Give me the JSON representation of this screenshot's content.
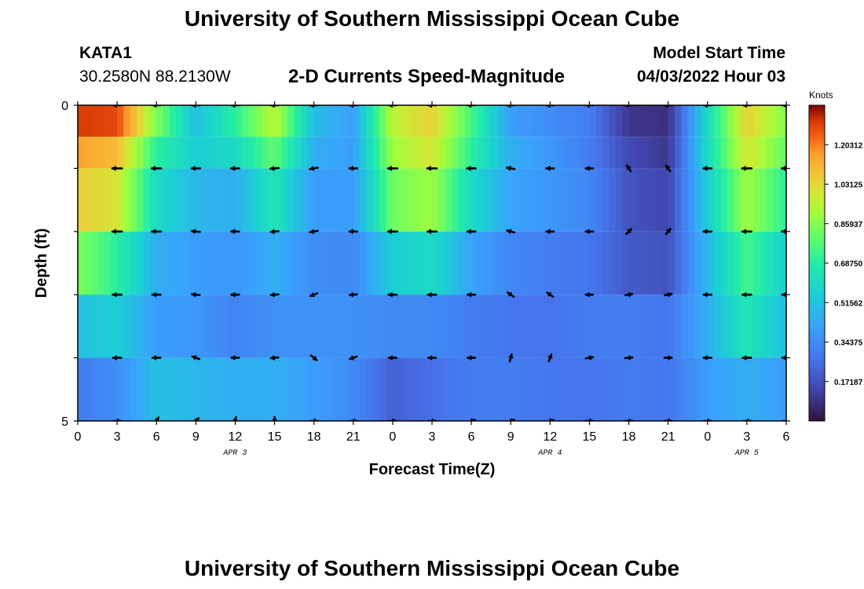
{
  "header": {
    "title": "University of Southern Mississippi Ocean Cube",
    "station_id": "KATA1",
    "coordinates": "30.2580N  88.2130W",
    "chart_title": "2-D Currents Speed-Magnitude",
    "model_label": "Model Start Time",
    "model_time": "04/03/2022 Hour 03"
  },
  "footer": {
    "title": "University of Southern Mississippi Ocean Cube"
  },
  "chart_data": {
    "type": "heatmap",
    "title": "2-D Currents Speed-Magnitude",
    "xlabel": "Forecast Time(Z)",
    "ylabel": "Depth (ft)",
    "x_ticks": [
      "0",
      "3",
      "6",
      "9",
      "12",
      "15",
      "18",
      "21",
      "0",
      "3",
      "6",
      "9",
      "12",
      "15",
      "18",
      "21",
      "0",
      "3",
      "6"
    ],
    "x_range_hours": [
      0,
      54
    ],
    "y_ticks": [
      "0",
      "5"
    ],
    "y_range_ft": [
      0,
      5
    ],
    "date_labels": [
      {
        "hour": 12,
        "text": "APR 3"
      },
      {
        "hour": 36,
        "text": "APR 4"
      },
      {
        "hour": 51,
        "text": "APR 5"
      }
    ],
    "colorbar": {
      "label": "Knots",
      "min": 0,
      "max": 1.375,
      "ticks": [
        "1.20312",
        "1.03125",
        "0.85937",
        "0.68750",
        "0.51562",
        "0.34375",
        "0.17187"
      ],
      "tick_values": [
        1.20312,
        1.03125,
        0.85937,
        0.6875,
        0.51562,
        0.34375,
        0.17187
      ]
    },
    "depth_layers_ft": [
      0,
      0.5,
      1.5,
      2.5,
      3.5,
      4.5
    ],
    "key_times_hours": [
      0,
      3,
      6,
      9,
      12,
      15,
      18,
      21,
      24,
      27,
      30,
      33,
      36,
      39,
      42,
      45,
      48,
      51,
      54
    ],
    "speed_knots": [
      [
        1.3,
        1.28,
        0.85,
        0.5,
        0.7,
        0.95,
        0.5,
        0.4,
        0.95,
        1.05,
        0.75,
        0.4,
        0.35,
        0.3,
        0.1,
        0.08,
        0.6,
        1.05,
        0.85
      ],
      [
        1.15,
        1.1,
        0.7,
        0.55,
        0.6,
        0.8,
        0.45,
        0.4,
        0.9,
        1.0,
        0.7,
        0.45,
        0.38,
        0.3,
        0.15,
        0.1,
        0.6,
        1.0,
        0.8
      ],
      [
        1.05,
        1.0,
        0.6,
        0.48,
        0.45,
        0.65,
        0.4,
        0.4,
        0.82,
        0.9,
        0.6,
        0.42,
        0.38,
        0.33,
        0.18,
        0.14,
        0.55,
        0.9,
        0.7
      ],
      [
        0.85,
        0.7,
        0.45,
        0.4,
        0.38,
        0.45,
        0.35,
        0.34,
        0.55,
        0.6,
        0.42,
        0.33,
        0.3,
        0.28,
        0.2,
        0.18,
        0.48,
        0.75,
        0.55
      ],
      [
        0.5,
        0.55,
        0.4,
        0.38,
        0.32,
        0.36,
        0.36,
        0.36,
        0.34,
        0.34,
        0.3,
        0.28,
        0.27,
        0.3,
        0.3,
        0.28,
        0.45,
        0.65,
        0.5
      ],
      [
        0.3,
        0.35,
        0.5,
        0.48,
        0.45,
        0.45,
        0.4,
        0.34,
        0.22,
        0.26,
        0.3,
        0.3,
        0.28,
        0.27,
        0.3,
        0.28,
        0.4,
        0.45,
        0.4
      ]
    ],
    "arrow_times_hours": [
      3,
      6,
      9,
      12,
      15,
      18,
      21,
      24,
      27,
      30,
      33,
      36,
      39,
      42,
      45,
      48,
      51,
      54
    ],
    "arrow_depths_ft": [
      0,
      1,
      2,
      3,
      4,
      5
    ],
    "arrow_direction_deg": [
      [
        180,
        180,
        180,
        180,
        180,
        180,
        180,
        180,
        180,
        180,
        180,
        180,
        180,
        180,
        180,
        180,
        180,
        180
      ],
      [
        180,
        180,
        180,
        180,
        185,
        190,
        180,
        180,
        180,
        180,
        170,
        180,
        180,
        125,
        125,
        180,
        180,
        180
      ],
      [
        180,
        180,
        175,
        180,
        185,
        190,
        180,
        180,
        180,
        180,
        165,
        180,
        180,
        45,
        50,
        180,
        180,
        180
      ],
      [
        180,
        180,
        175,
        180,
        185,
        200,
        185,
        180,
        180,
        180,
        145,
        145,
        180,
        10,
        10,
        180,
        180,
        180
      ],
      [
        180,
        180,
        160,
        180,
        185,
        320,
        200,
        180,
        180,
        180,
        75,
        70,
        10,
        5,
        0,
        180,
        180,
        180
      ],
      [
        0,
        60,
        45,
        80,
        90,
        0,
        0,
        0,
        0,
        20,
        20,
        15,
        0,
        0,
        0,
        0,
        0,
        0
      ]
    ],
    "arrow_speed_knots": [
      [
        0.4,
        0.4,
        0.4,
        0.4,
        0.4,
        0.4,
        0.4,
        0.4,
        0.4,
        0.4,
        0.4,
        0.4,
        0.4,
        0.4,
        0.4,
        0.4,
        0.4,
        0.4
      ],
      [
        1.1,
        1.0,
        0.7,
        0.55,
        0.6,
        0.5,
        0.45,
        0.9,
        1.0,
        0.7,
        0.45,
        0.38,
        0.3,
        0.15,
        0.15,
        0.6,
        1.0,
        0.8
      ],
      [
        1.0,
        0.9,
        0.6,
        0.5,
        0.5,
        0.45,
        0.42,
        0.85,
        0.9,
        0.6,
        0.42,
        0.38,
        0.33,
        0.18,
        0.15,
        0.55,
        0.9,
        0.7
      ],
      [
        0.75,
        0.6,
        0.45,
        0.4,
        0.4,
        0.35,
        0.34,
        0.55,
        0.6,
        0.42,
        0.33,
        0.3,
        0.28,
        0.2,
        0.18,
        0.48,
        0.75,
        0.55
      ],
      [
        0.55,
        0.5,
        0.4,
        0.38,
        0.35,
        0.36,
        0.36,
        0.34,
        0.34,
        0.3,
        0.28,
        0.27,
        0.3,
        0.3,
        0.28,
        0.45,
        0.65,
        0.5
      ],
      [
        0.3,
        0.5,
        0.48,
        0.45,
        0.45,
        0.4,
        0.3,
        0.22,
        0.26,
        0.3,
        0.3,
        0.28,
        0.27,
        0.3,
        0.28,
        0.4,
        0.45,
        0.4
      ]
    ]
  }
}
